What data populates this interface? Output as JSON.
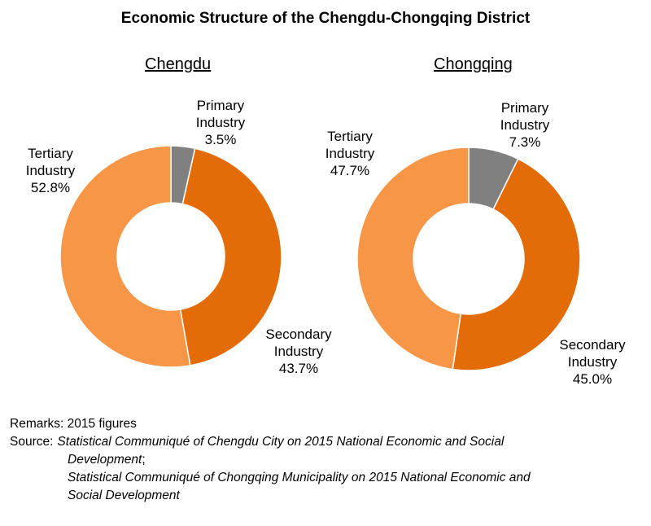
{
  "chart_data": [
    {
      "type": "pie",
      "title": "Chengdu",
      "categories": [
        "Primary Industry",
        "Secondary Industry",
        "Tertiary Industry"
      ],
      "values": [
        3.5,
        43.7,
        52.8
      ],
      "value_labels": [
        "3.5%",
        "43.7%",
        "52.8%"
      ],
      "colors": [
        "#808080",
        "#E36C09",
        "#F79646"
      ],
      "donut": true
    },
    {
      "type": "pie",
      "title": "Chongqing",
      "categories": [
        "Primary Industry",
        "Secondary Industry",
        "Tertiary Industry"
      ],
      "values": [
        7.3,
        45.0,
        47.7
      ],
      "value_labels": [
        "7.3%",
        "45.0%",
        "47.7%"
      ],
      "colors": [
        "#808080",
        "#E36C09",
        "#F79646"
      ],
      "donut": true
    }
  ],
  "figure": {
    "title": "Economic Structure of the Chengdu-Chongqing District",
    "label_lines": {
      "Primary Industry": [
        "Primary",
        "Industry"
      ],
      "Secondary Industry": [
        "Secondary",
        "Industry"
      ],
      "Tertiary Industry": [
        "Tertiary",
        "Industry"
      ]
    }
  },
  "notes": {
    "remarks": "Remarks: 2015 figures",
    "source_label": "Source:",
    "source_1a": "Statistical Communiqué of Chengdu City on 2015 National Economic and Social",
    "source_1b": "Development",
    "source_1_suffix": ";",
    "source_2a": "Statistical Communiqué of Chongqing Municipality on 2015 National Economic and",
    "source_2b": "Social Development"
  }
}
